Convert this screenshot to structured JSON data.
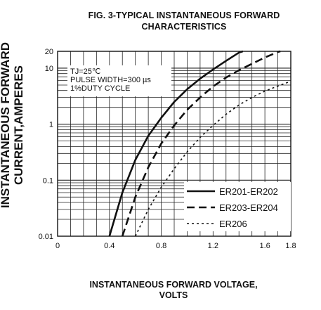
{
  "chart_data": {
    "type": "line",
    "title": "FIG. 3-TYPICAL INSTANTANEOUS FORWARD",
    "subtitle": "CHARACTERISTICS",
    "xlabel_line1": "INSTANTANEOUS FORWARD VOLTAGE,",
    "xlabel_line2": "VOLTS",
    "ylabel_line1": "INSTANTANEOUS FORWARD",
    "ylabel_line2": "CURRENT,AMPERES",
    "x_scale": "linear",
    "y_scale": "log",
    "xlim": [
      0,
      1.8
    ],
    "ylim": [
      0.01,
      20
    ],
    "x_ticks": [
      "0",
      "0.4",
      "0.8",
      "1.2",
      "1.6",
      "1.8"
    ],
    "y_ticks": [
      "0.01",
      "0.1",
      "1",
      "10",
      "20"
    ],
    "grid": true,
    "conditions": [
      "TJ=25℃",
      "PULSE WIDTH=300 µs",
      "1%DUTY CYCLE"
    ],
    "legend_position": "bottom-right",
    "series": [
      {
        "name": "ER201-ER202",
        "style": "solid",
        "points": [
          [
            0.4,
            0.01
          ],
          [
            0.5,
            0.06
          ],
          [
            0.6,
            0.23
          ],
          [
            0.7,
            0.62
          ],
          [
            0.8,
            1.3
          ],
          [
            0.9,
            2.5
          ],
          [
            1.0,
            4.2
          ],
          [
            1.1,
            6.5
          ],
          [
            1.2,
            9.5
          ],
          [
            1.3,
            13.5
          ],
          [
            1.4,
            19
          ],
          [
            1.43,
            20
          ]
        ]
      },
      {
        "name": "ER203-ER204",
        "style": "dashed",
        "points": [
          [
            0.5,
            0.01
          ],
          [
            0.6,
            0.05
          ],
          [
            0.7,
            0.17
          ],
          [
            0.8,
            0.45
          ],
          [
            0.9,
            0.95
          ],
          [
            1.0,
            1.8
          ],
          [
            1.1,
            3.0
          ],
          [
            1.2,
            4.7
          ],
          [
            1.3,
            6.8
          ],
          [
            1.4,
            9.2
          ],
          [
            1.5,
            12
          ],
          [
            1.6,
            15.5
          ],
          [
            1.7,
            19.5
          ],
          [
            1.72,
            20
          ]
        ]
      },
      {
        "name": "ER206",
        "style": "dotted",
        "points": [
          [
            0.6,
            0.01
          ],
          [
            0.7,
            0.03
          ],
          [
            0.8,
            0.075
          ],
          [
            0.9,
            0.16
          ],
          [
            1.0,
            0.32
          ],
          [
            1.1,
            0.58
          ],
          [
            1.2,
            0.95
          ],
          [
            1.3,
            1.5
          ],
          [
            1.4,
            2.2
          ],
          [
            1.5,
            3.0
          ],
          [
            1.6,
            3.9
          ],
          [
            1.7,
            4.8
          ],
          [
            1.78,
            5.6
          ]
        ]
      }
    ]
  }
}
